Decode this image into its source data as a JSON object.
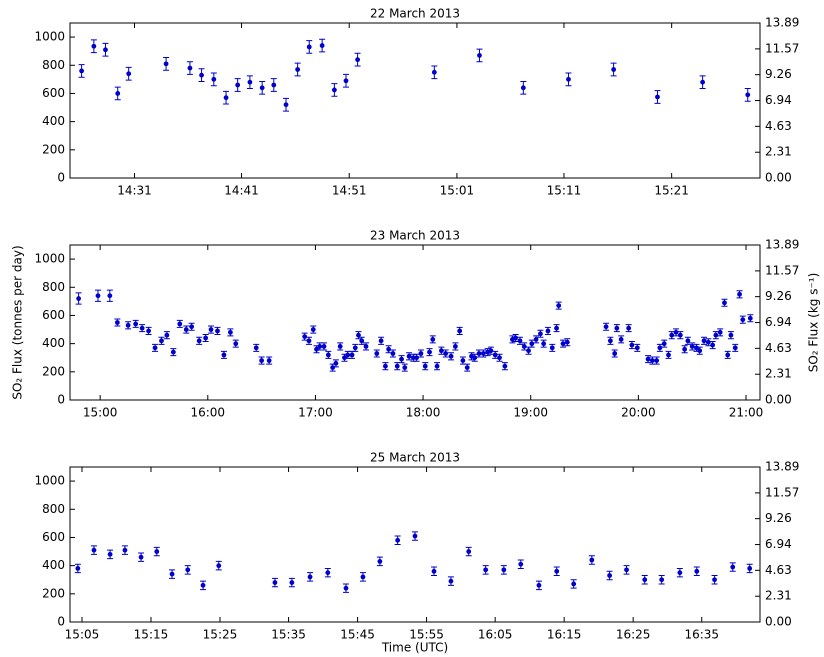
{
  "chart_data": [
    {
      "type": "scatter",
      "title": "22 March 2013",
      "color": "#0000cc",
      "x": [
        14.435,
        14.454,
        14.472,
        14.491,
        14.508,
        14.566,
        14.603,
        14.621,
        14.64,
        14.659,
        14.677,
        14.696,
        14.715,
        14.733,
        14.752,
        14.77,
        14.788,
        14.808,
        14.827,
        14.845,
        14.863,
        14.982,
        15.052,
        15.12,
        15.19,
        15.26,
        15.328,
        15.398,
        15.468
      ],
      "values": [
        760,
        935,
        910,
        600,
        740,
        810,
        780,
        730,
        700,
        570,
        660,
        680,
        640,
        660,
        520,
        770,
        930,
        940,
        625,
        690,
        840,
        750,
        870,
        640,
        700,
        770,
        575,
        680,
        590
      ],
      "errors": [
        45,
        45,
        45,
        45,
        45,
        45,
        45,
        45,
        45,
        45,
        45,
        45,
        45,
        45,
        45,
        45,
        45,
        45,
        45,
        45,
        45,
        45,
        45,
        45,
        45,
        45,
        45,
        45,
        45
      ],
      "xlim": [
        14.417,
        15.487
      ],
      "xticks": [
        {
          "value": 14.517,
          "label": "14:31"
        },
        {
          "value": 14.683,
          "label": "14:41"
        },
        {
          "value": 14.85,
          "label": "14:51"
        },
        {
          "value": 15.017,
          "label": "15:01"
        },
        {
          "value": 15.183,
          "label": "15:11"
        },
        {
          "value": 15.35,
          "label": "15:21"
        }
      ],
      "ylim": [
        0,
        1100
      ],
      "yticks": [
        0,
        200,
        400,
        600,
        800,
        1000
      ],
      "y2lim": [
        0,
        13.89
      ],
      "y2ticks": [
        {
          "value": 0,
          "label": "0.00"
        },
        2.31,
        4.63,
        6.94,
        9.26,
        11.57,
        13.89
      ]
    },
    {
      "type": "scatter",
      "title": "23 March 2013",
      "color": "#0000cc",
      "ylabel": "SO₂ Flux (tonnes per day)",
      "y2label": "SO₂ Flux (kg s⁻¹)",
      "x": [
        14.8,
        14.98,
        15.09,
        15.16,
        15.26,
        15.33,
        15.39,
        15.45,
        15.51,
        15.57,
        15.62,
        15.68,
        15.74,
        15.8,
        15.85,
        15.92,
        15.98,
        16.03,
        16.09,
        16.15,
        16.21,
        16.26,
        16.45,
        16.5,
        16.57,
        16.9,
        16.94,
        16.98,
        17.01,
        17.04,
        17.08,
        17.12,
        17.16,
        17.19,
        17.23,
        17.27,
        17.3,
        17.34,
        17.37,
        17.4,
        17.43,
        17.47,
        17.57,
        17.61,
        17.65,
        17.68,
        17.72,
        17.76,
        17.8,
        17.83,
        17.87,
        17.91,
        17.94,
        17.98,
        18.02,
        18.06,
        18.09,
        18.13,
        18.17,
        18.21,
        18.26,
        18.3,
        18.34,
        18.37,
        18.41,
        18.45,
        18.48,
        18.52,
        18.56,
        18.6,
        18.63,
        18.67,
        18.71,
        18.76,
        18.83,
        18.86,
        18.9,
        18.94,
        18.98,
        19.01,
        19.05,
        19.09,
        19.12,
        19.16,
        19.2,
        19.24,
        19.26,
        19.3,
        19.34,
        19.7,
        19.74,
        19.78,
        19.8,
        19.84,
        19.91,
        19.94,
        19.99,
        20.09,
        20.13,
        20.17,
        20.2,
        20.24,
        20.28,
        20.31,
        20.35,
        20.39,
        20.43,
        20.46,
        20.5,
        20.54,
        20.57,
        20.61,
        20.65,
        20.69,
        20.72,
        20.76,
        20.8,
        20.83,
        20.86,
        20.9,
        20.94,
        20.97,
        21.04
      ],
      "values": [
        720,
        740,
        740,
        550,
        530,
        540,
        510,
        490,
        370,
        420,
        460,
        340,
        540,
        500,
        520,
        420,
        440,
        500,
        490,
        320,
        480,
        400,
        370,
        280,
        280,
        450,
        420,
        500,
        360,
        380,
        380,
        320,
        230,
        260,
        380,
        300,
        320,
        320,
        370,
        460,
        420,
        380,
        330,
        420,
        240,
        360,
        330,
        240,
        290,
        230,
        310,
        300,
        300,
        330,
        240,
        340,
        430,
        240,
        350,
        330,
        310,
        380,
        490,
        280,
        230,
        310,
        300,
        330,
        330,
        340,
        350,
        320,
        300,
        240,
        430,
        440,
        420,
        380,
        350,
        400,
        430,
        470,
        400,
        490,
        370,
        510,
        670,
        400,
        410,
        520,
        420,
        330,
        510,
        430,
        510,
        390,
        370,
        290,
        280,
        280,
        370,
        400,
        320,
        460,
        480,
        460,
        360,
        420,
        380,
        370,
        350,
        420,
        410,
        390,
        460,
        480,
        690,
        320,
        460,
        370,
        750,
        570,
        580
      ],
      "errors": [
        40,
        40,
        40,
        25,
        25,
        25,
        25,
        25,
        25,
        25,
        25,
        25,
        25,
        25,
        25,
        25,
        25,
        25,
        25,
        25,
        25,
        25,
        25,
        25,
        25,
        25,
        25,
        25,
        25,
        25,
        25,
        25,
        25,
        25,
        25,
        25,
        25,
        25,
        25,
        25,
        25,
        25,
        25,
        25,
        25,
        25,
        25,
        25,
        25,
        25,
        25,
        25,
        25,
        25,
        25,
        25,
        25,
        25,
        25,
        25,
        25,
        25,
        25,
        25,
        25,
        25,
        25,
        25,
        25,
        25,
        25,
        25,
        25,
        25,
        25,
        25,
        25,
        25,
        25,
        25,
        25,
        25,
        25,
        25,
        25,
        25,
        25,
        25,
        25,
        25,
        25,
        25,
        25,
        25,
        25,
        25,
        25,
        25,
        25,
        25,
        25,
        25,
        25,
        25,
        25,
        25,
        25,
        25,
        25,
        25,
        25,
        25,
        25,
        25,
        25,
        25,
        25,
        25,
        25,
        25,
        25,
        25,
        25
      ],
      "xlim": [
        14.72,
        21.13
      ],
      "xticks": [
        {
          "value": 15,
          "label": "15:00"
        },
        {
          "value": 16,
          "label": "16:00"
        },
        {
          "value": 17,
          "label": "17:00"
        },
        {
          "value": 18,
          "label": "18:00"
        },
        {
          "value": 19,
          "label": "19:00"
        },
        {
          "value": 20,
          "label": "20:00"
        },
        {
          "value": 21,
          "label": "21:00"
        }
      ],
      "ylim": [
        0,
        1100
      ],
      "yticks": [
        0,
        200,
        400,
        600,
        800,
        1000
      ],
      "y2lim": [
        0,
        13.89
      ],
      "y2ticks": [
        {
          "value": 0,
          "label": "0.00"
        },
        2.31,
        4.63,
        6.94,
        9.26,
        11.57,
        13.89
      ]
    },
    {
      "type": "scatter",
      "title": "25 March 2013",
      "color": "#0000cc",
      "xlabel": "Time (UTC)",
      "x": [
        15.073,
        15.112,
        15.151,
        15.187,
        15.226,
        15.264,
        15.301,
        15.339,
        15.376,
        15.414,
        15.55,
        15.591,
        15.635,
        15.678,
        15.722,
        15.763,
        15.804,
        15.847,
        15.889,
        15.935,
        15.976,
        16.019,
        16.06,
        16.104,
        16.145,
        16.189,
        16.232,
        16.273,
        16.317,
        16.36,
        16.401,
        16.445,
        16.486,
        16.53,
        16.571,
        16.614,
        16.658,
        16.699
      ],
      "values": [
        380,
        510,
        480,
        510,
        460,
        500,
        340,
        370,
        260,
        400,
        280,
        280,
        320,
        350,
        240,
        320,
        430,
        580,
        610,
        360,
        290,
        500,
        370,
        370,
        410,
        260,
        360,
        270,
        440,
        330,
        370,
        300,
        300,
        350,
        360,
        300,
        390,
        380
      ],
      "errors": [
        30,
        30,
        30,
        30,
        30,
        30,
        30,
        30,
        30,
        30,
        30,
        30,
        30,
        30,
        30,
        30,
        30,
        30,
        30,
        30,
        30,
        30,
        30,
        30,
        30,
        30,
        30,
        30,
        30,
        30,
        30,
        30,
        30,
        30,
        30,
        30,
        30,
        30
      ],
      "xlim": [
        15.054,
        16.724
      ],
      "xticks": [
        {
          "value": 15.083,
          "label": "15:05"
        },
        {
          "value": 15.25,
          "label": "15:15"
        },
        {
          "value": 15.417,
          "label": "15:25"
        },
        {
          "value": 15.583,
          "label": "15:35"
        },
        {
          "value": 15.75,
          "label": "15:45"
        },
        {
          "value": 15.917,
          "label": "15:55"
        },
        {
          "value": 16.083,
          "label": "16:05"
        },
        {
          "value": 16.25,
          "label": "16:15"
        },
        {
          "value": 16.417,
          "label": "16:25"
        },
        {
          "value": 16.583,
          "label": "16:35"
        }
      ],
      "ylim": [
        0,
        1100
      ],
      "yticks": [
        0,
        200,
        400,
        600,
        800,
        1000
      ],
      "y2lim": [
        0,
        13.89
      ],
      "y2ticks": [
        {
          "value": 0,
          "label": "0.00"
        },
        2.31,
        4.63,
        6.94,
        9.26,
        11.57,
        13.89
      ]
    }
  ]
}
